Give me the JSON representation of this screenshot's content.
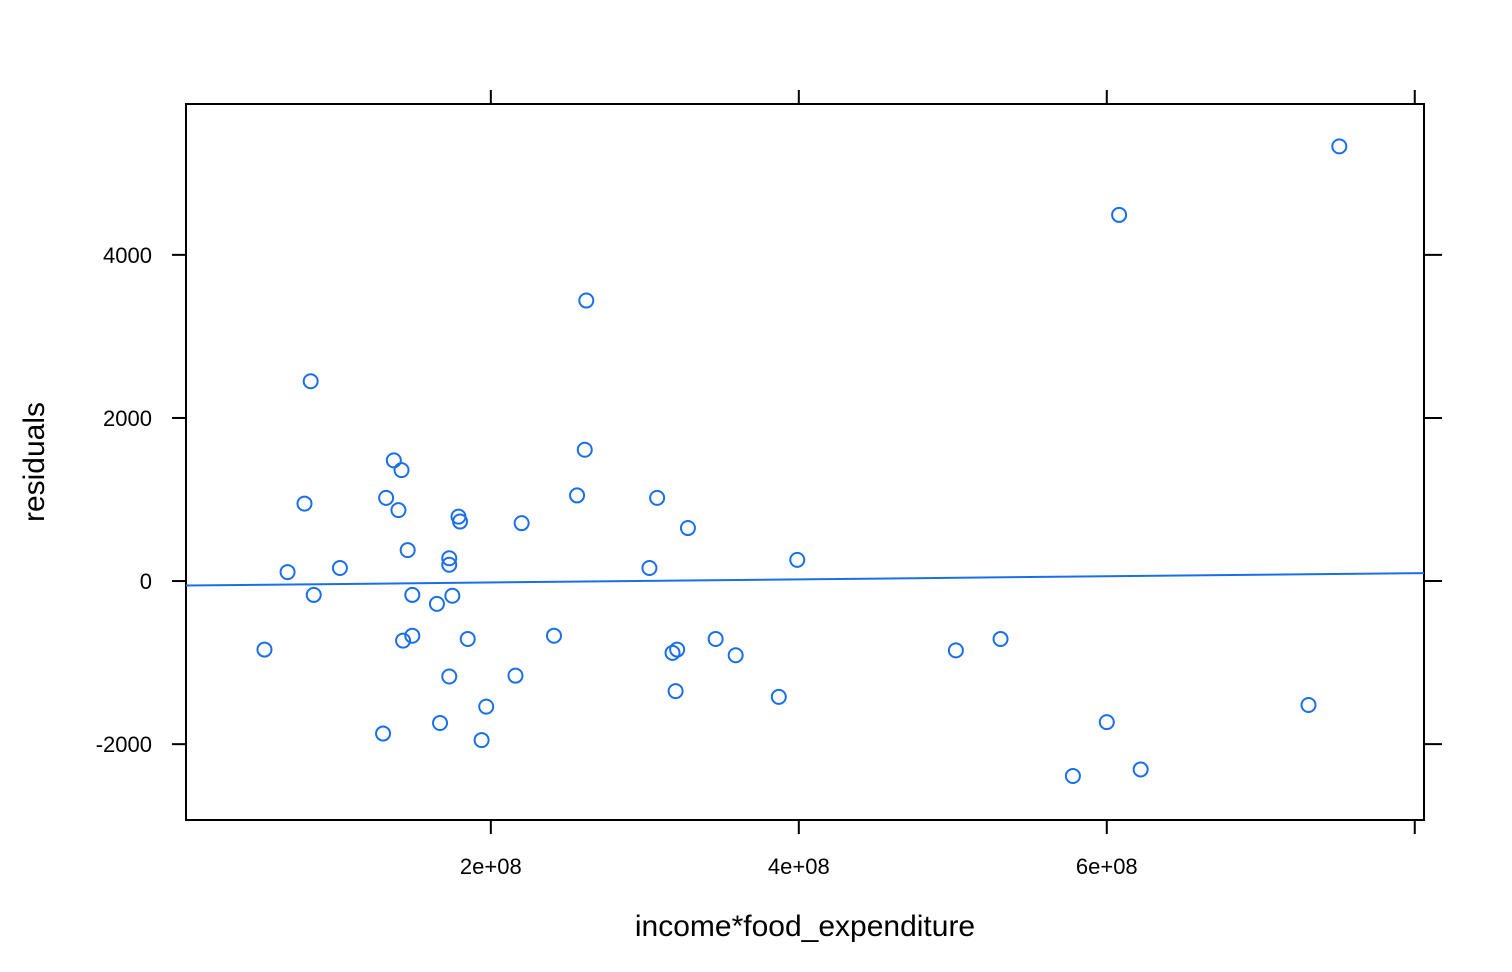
{
  "chart_data": {
    "type": "scatter",
    "xlabel": "income*food_expenditure",
    "ylabel": "residuals",
    "xlim": [
      2040000,
      806000000
    ],
    "ylim": [
      -2930,
      5850
    ],
    "x_ticks": [
      200000000,
      400000000,
      600000000,
      800000000
    ],
    "x_tick_labels": [
      "2e+08",
      "4e+08",
      "6e+08",
      ""
    ],
    "y_ticks": [
      -2000,
      0,
      2000,
      4000
    ],
    "y_tick_labels": [
      "-2000",
      "0",
      "2000",
      "4000"
    ],
    "grid": false,
    "colors": {
      "points": "#1a6fe8",
      "fit_line": "#1a6fe8",
      "axes": "#000000"
    },
    "fit_line": {
      "x": [
        2040000,
        806000000
      ],
      "y": [
        -55,
        98
      ]
    },
    "points": [
      {
        "x": 53000000,
        "y": -840
      },
      {
        "x": 68000000,
        "y": 110
      },
      {
        "x": 79000000,
        "y": 950
      },
      {
        "x": 83000000,
        "y": 2450
      },
      {
        "x": 85000000,
        "y": -170
      },
      {
        "x": 102000000,
        "y": 160
      },
      {
        "x": 130000000,
        "y": -1870
      },
      {
        "x": 132000000,
        "y": 1020
      },
      {
        "x": 137000000,
        "y": 1480
      },
      {
        "x": 140000000,
        "y": 870
      },
      {
        "x": 142000000,
        "y": 1360
      },
      {
        "x": 143000000,
        "y": -730
      },
      {
        "x": 146000000,
        "y": 380
      },
      {
        "x": 149000000,
        "y": -170
      },
      {
        "x": 149000000,
        "y": -670
      },
      {
        "x": 165000000,
        "y": -280
      },
      {
        "x": 167000000,
        "y": -1740
      },
      {
        "x": 173000000,
        "y": 280
      },
      {
        "x": 173000000,
        "y": 200
      },
      {
        "x": 173000000,
        "y": -1170
      },
      {
        "x": 175000000,
        "y": -180
      },
      {
        "x": 179000000,
        "y": 790
      },
      {
        "x": 180000000,
        "y": 730
      },
      {
        "x": 185000000,
        "y": -710
      },
      {
        "x": 194000000,
        "y": -1950
      },
      {
        "x": 197000000,
        "y": -1540
      },
      {
        "x": 216000000,
        "y": -1160
      },
      {
        "x": 220000000,
        "y": 710
      },
      {
        "x": 241000000,
        "y": -670
      },
      {
        "x": 256000000,
        "y": 1050
      },
      {
        "x": 261000000,
        "y": 1610
      },
      {
        "x": 262000000,
        "y": 3440
      },
      {
        "x": 303000000,
        "y": 160
      },
      {
        "x": 308000000,
        "y": 1020
      },
      {
        "x": 318000000,
        "y": -880
      },
      {
        "x": 320000000,
        "y": -1350
      },
      {
        "x": 321000000,
        "y": -840
      },
      {
        "x": 328000000,
        "y": 650
      },
      {
        "x": 346000000,
        "y": -710
      },
      {
        "x": 359000000,
        "y": -910
      },
      {
        "x": 387000000,
        "y": -1420
      },
      {
        "x": 399000000,
        "y": 260
      },
      {
        "x": 502000000,
        "y": -850
      },
      {
        "x": 531000000,
        "y": -710
      },
      {
        "x": 578000000,
        "y": -2390
      },
      {
        "x": 600000000,
        "y": -1730
      },
      {
        "x": 608000000,
        "y": 4490
      },
      {
        "x": 622000000,
        "y": -2310
      },
      {
        "x": 731000000,
        "y": -1520
      },
      {
        "x": 751000000,
        "y": 5330
      }
    ]
  }
}
